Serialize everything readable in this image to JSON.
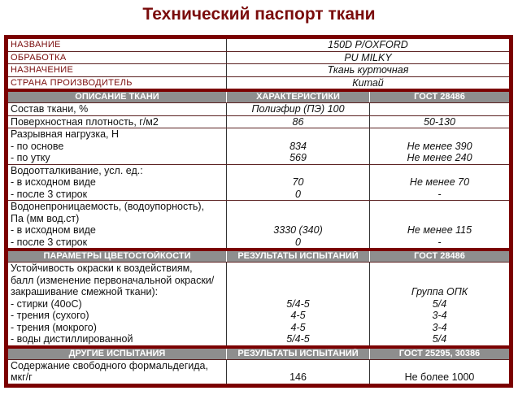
{
  "title": "Технический паспорт ткани",
  "info": [
    {
      "label": "НАЗВАНИЕ",
      "value": "150D P/OXFORD"
    },
    {
      "label": "ОБРАБОТКА",
      "value": "PU MILKY"
    },
    {
      "label": "НАЗНАЧЕНИЕ",
      "value": "Ткань курточная"
    },
    {
      "label": "СТРАНА ПРОИЗВОДИТЕЛЬ",
      "value": "Китай"
    }
  ],
  "sections": [
    {
      "headers": [
        "ОПИСАНИЕ ТКАНИ",
        "ХАРАКТЕРИСТИКИ",
        "ГОСТ 28486"
      ],
      "italic": true,
      "rows": [
        {
          "lines": [
            [
              "Состав ткани, %",
              "Полиэфир (ПЭ) 100",
              ""
            ]
          ]
        },
        {
          "lines": [
            [
              "Поверхностная плотность, г/м2",
              "86",
              "50-130"
            ]
          ]
        },
        {
          "lines": [
            [
              "Разрывная нагрузка, Н",
              "",
              ""
            ],
            [
              "- по основе",
              "834",
              "Не менее 390"
            ],
            [
              "- по утку",
              "569",
              "Не менее 240"
            ]
          ]
        },
        {
          "lines": [
            [
              "Водоотталкивание, усл. ед.:",
              "",
              ""
            ],
            [
              "- в исходном виде",
              "70",
              "Не менее 70"
            ],
            [
              "- после 3 стирок",
              "0",
              "-"
            ]
          ]
        },
        {
          "lines": [
            [
              "Водонепроницаемость, (водоупорность),",
              "",
              ""
            ],
            [
              "Па (мм вод.ст)",
              "",
              ""
            ],
            [
              "- в исходном виде",
              "3330 (340)",
              "Не менее 115"
            ],
            [
              "- после 3 стирок",
              "0",
              "-"
            ]
          ]
        }
      ]
    },
    {
      "headers": [
        "ПАРАМЕТРЫ ЦВЕТОСТОЙКОСТИ",
        "РЕЗУЛЬТАТЫ ИСПЫТАНИЙ",
        "ГОСТ 28486"
      ],
      "italic": true,
      "rows": [
        {
          "lines": [
            [
              "Устойчивость окраски к воздействиям,",
              "",
              ""
            ],
            [
              "балл (изменение первоначальной окраски/",
              "",
              ""
            ],
            [
              "закрашивание смежной ткани):",
              "",
              "Группа ОПК"
            ],
            [
              "- стирки (40оС)",
              "5/4-5",
              "5/4"
            ],
            [
              "- трения (сухого)",
              "4-5",
              "3-4"
            ],
            [
              "- трения (мокрого)",
              "4-5",
              "3-4"
            ],
            [
              "- воды дистиллированной",
              "5/4-5",
              "5/4"
            ]
          ]
        }
      ]
    },
    {
      "headers": [
        "ДРУГИЕ ИСПЫТАНИЯ",
        "РЕЗУЛЬТАТЫ ИСПЫТАНИЙ",
        "ГОСТ 25295, 30386"
      ],
      "italic": false,
      "rows": [
        {
          "lines": [
            [
              "Содержание свободного формальдегида,",
              "",
              ""
            ],
            [
              "мкг/г",
              "146",
              "Не более 1000"
            ]
          ]
        }
      ]
    }
  ],
  "colors": {
    "frame": "#7b0000",
    "header": "#8e8e8e",
    "title": "#7a0c0c"
  }
}
